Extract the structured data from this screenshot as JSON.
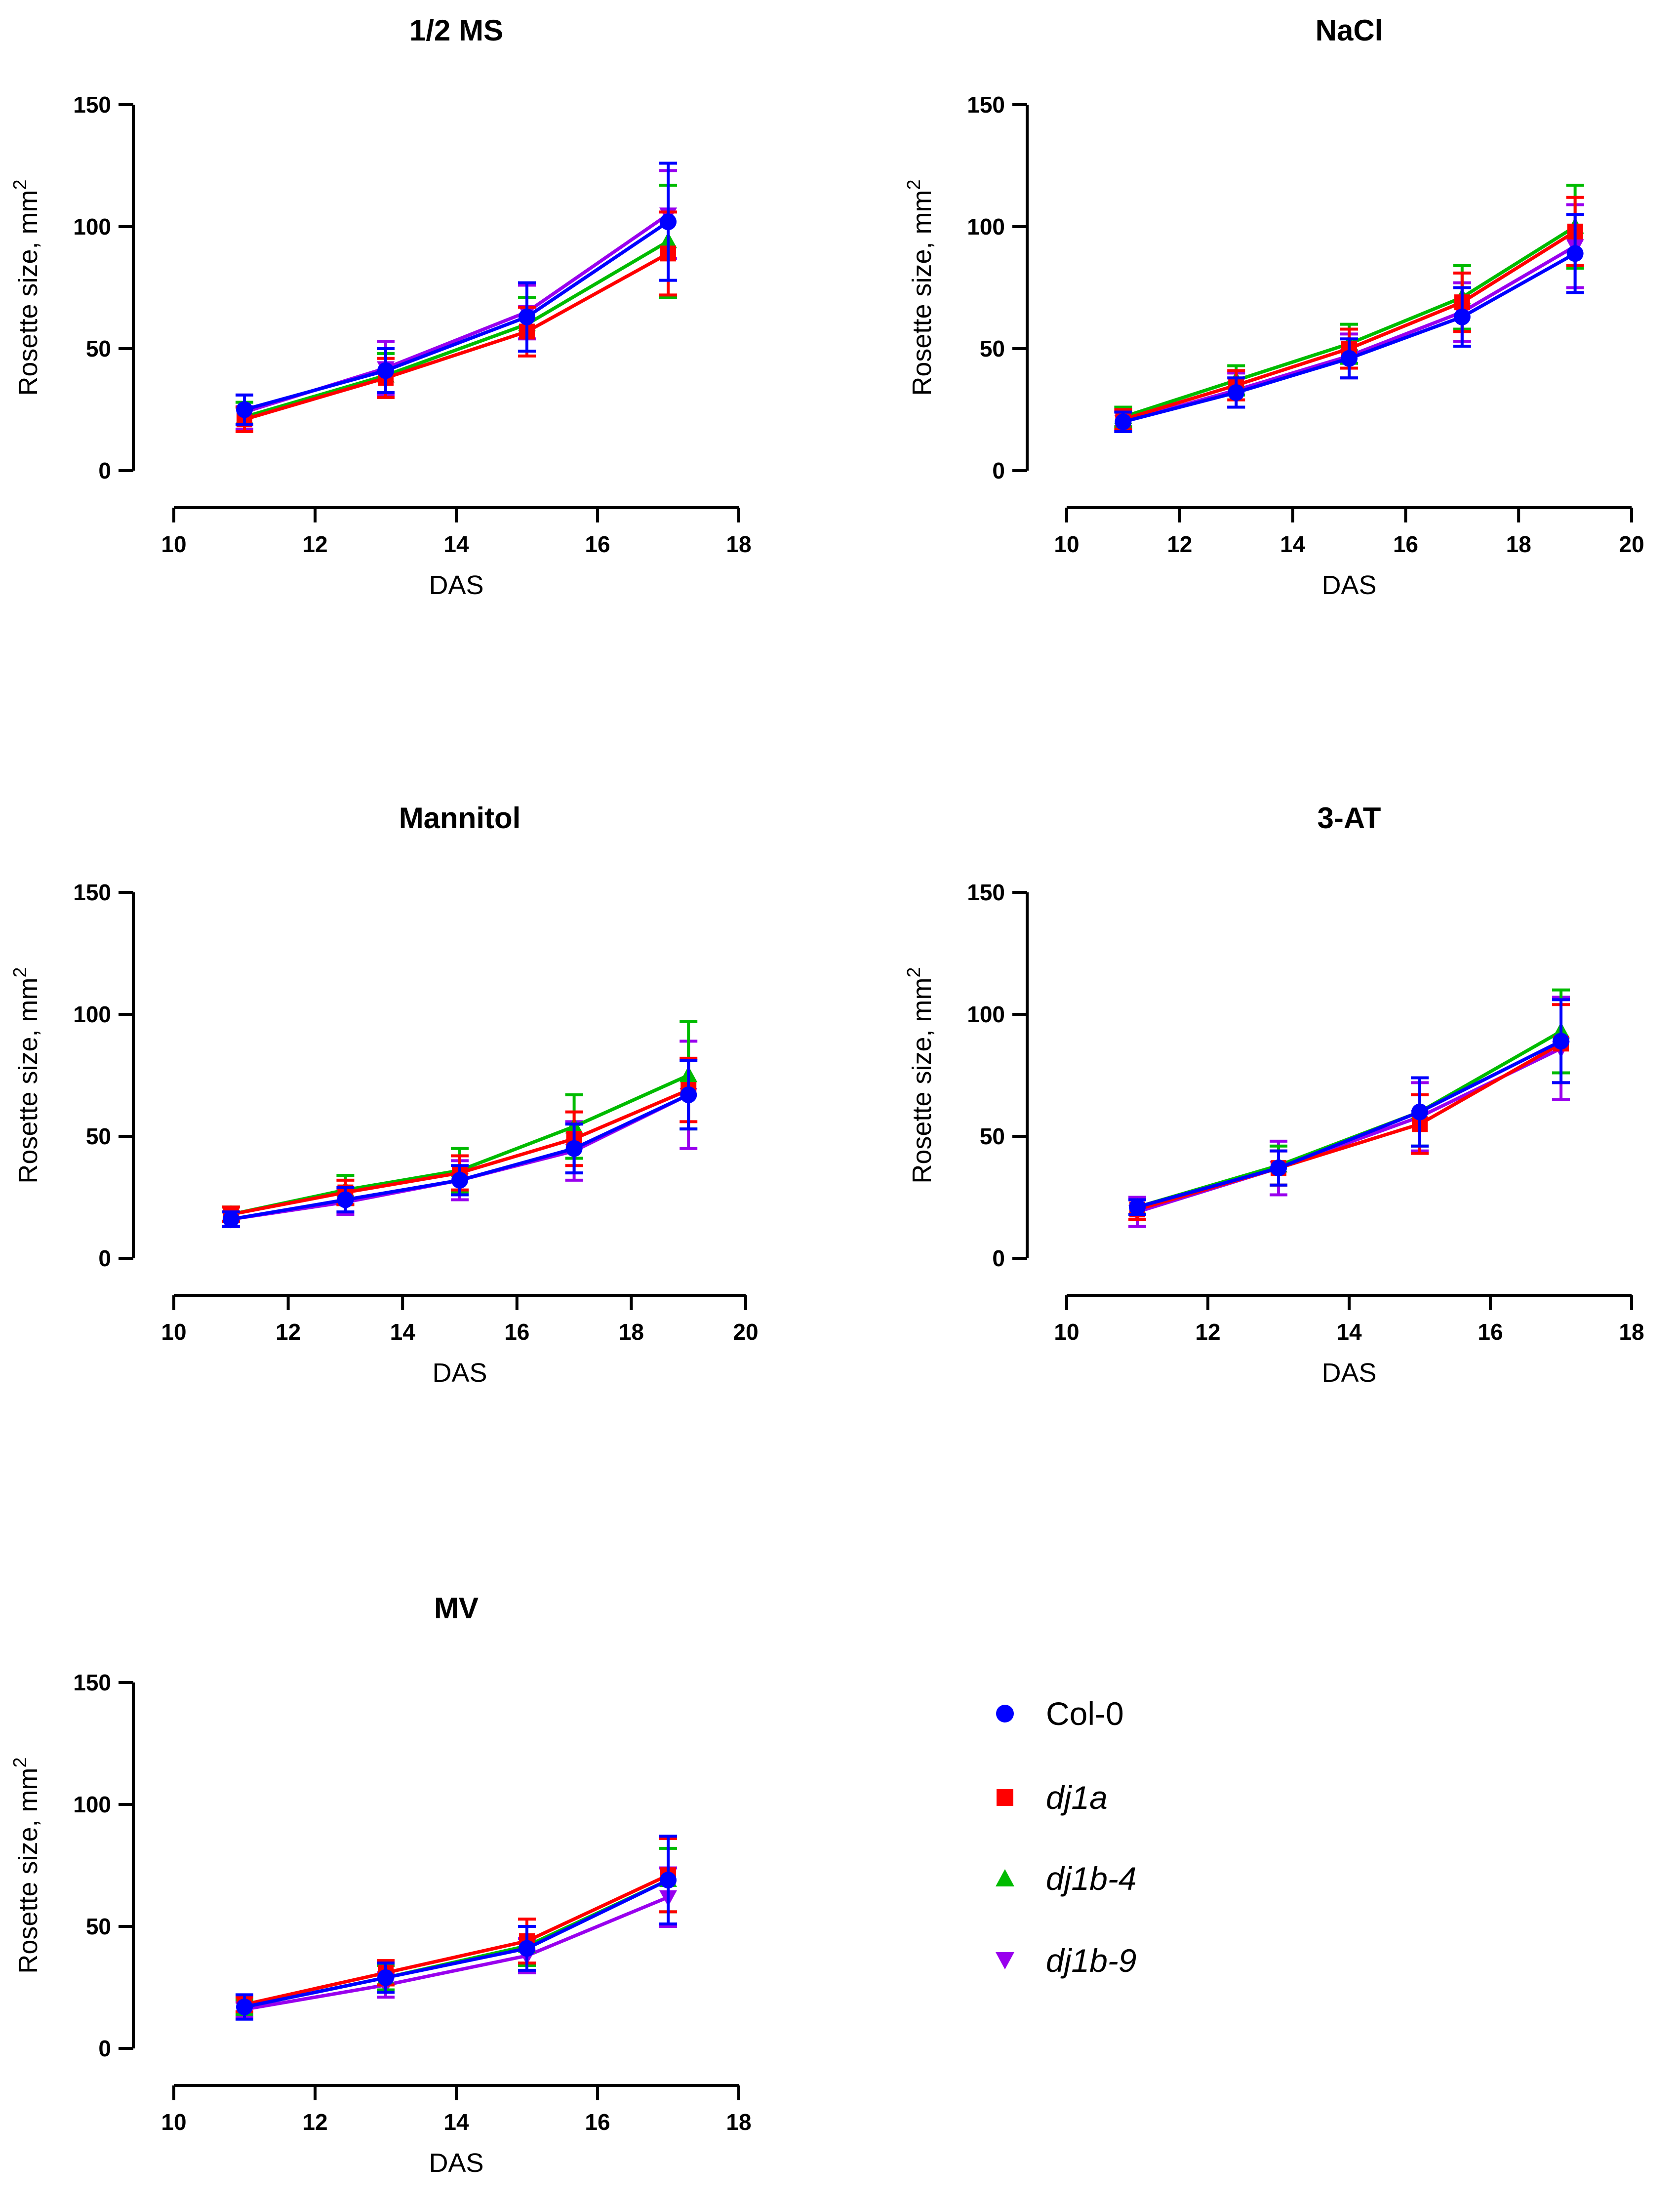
{
  "legend": [
    {
      "name": "Col-0",
      "italic": false,
      "color": "#0000FF",
      "marker": "circle"
    },
    {
      "name": "dj1a",
      "italic": true,
      "color": "#FF0000",
      "marker": "square"
    },
    {
      "name": "dj1b-4",
      "italic": true,
      "color": "#00BB00",
      "marker": "triangle-up"
    },
    {
      "name": "dj1b-9",
      "italic": true,
      "color": "#9900EE",
      "marker": "triangle-down"
    }
  ],
  "chart_data": [
    {
      "type": "line",
      "title": "1/2 MS",
      "xlabel": "DAS",
      "ylabel": "Rosette size, mm",
      "ylabel_sup": "2",
      "xlim": [
        10,
        18
      ],
      "ylim": [
        0,
        150
      ],
      "xticks": [
        "10",
        "12",
        "14",
        "16",
        "18"
      ],
      "yticks": [
        "0",
        "50",
        "100",
        "150"
      ],
      "x": [
        11,
        13,
        15,
        17
      ],
      "series": [
        {
          "name": "dj1b-9",
          "values": [
            24,
            42,
            65,
            105
          ],
          "errors": [
            7,
            11,
            11,
            18
          ]
        },
        {
          "name": "dj1b-4",
          "values": [
            22,
            39,
            60,
            94
          ],
          "errors": [
            6,
            9,
            11,
            23
          ]
        },
        {
          "name": "dj1a",
          "values": [
            21,
            38,
            57,
            89
          ],
          "errors": [
            5,
            8,
            10,
            17
          ]
        },
        {
          "name": "Col-0",
          "values": [
            25,
            41,
            63,
            102
          ],
          "errors": [
            6,
            9,
            14,
            24
          ]
        }
      ]
    },
    {
      "type": "line",
      "title": "NaCl",
      "xlabel": "DAS",
      "ylabel": "Rosette size, mm",
      "ylabel_sup": "2",
      "xlim": [
        10,
        20
      ],
      "ylim": [
        0,
        150
      ],
      "xticks": [
        "10",
        "12",
        "14",
        "16",
        "18",
        "20"
      ],
      "yticks": [
        "0",
        "50",
        "100",
        "150"
      ],
      "x": [
        11,
        13,
        15,
        17,
        19
      ],
      "series": [
        {
          "name": "dj1b-9",
          "values": [
            20,
            33,
            47,
            65,
            92
          ],
          "errors": [
            4,
            7,
            9,
            12,
            17
          ]
        },
        {
          "name": "dj1b-4",
          "values": [
            22,
            37,
            52,
            71,
            100
          ],
          "errors": [
            4,
            6,
            8,
            13,
            17
          ]
        },
        {
          "name": "dj1a",
          "values": [
            21,
            35,
            50,
            69,
            98
          ],
          "errors": [
            4,
            6,
            8,
            12,
            14
          ]
        },
        {
          "name": "Col-0",
          "values": [
            20,
            32,
            46,
            63,
            89
          ],
          "errors": [
            4,
            6,
            8,
            12,
            16
          ]
        }
      ]
    },
    {
      "type": "line",
      "title": "Mannitol",
      "xlabel": "DAS",
      "ylabel": "Rosette size, mm",
      "ylabel_sup": "2",
      "xlim": [
        10,
        20
      ],
      "ylim": [
        0,
        150
      ],
      "xticks": [
        "10",
        "12",
        "14",
        "16",
        "18",
        "20"
      ],
      "yticks": [
        "0",
        "50",
        "100",
        "150"
      ],
      "x": [
        11,
        13,
        15,
        17,
        19
      ],
      "series": [
        {
          "name": "dj1b-9",
          "values": [
            16,
            23,
            32,
            44,
            67
          ],
          "errors": [
            3,
            5,
            8,
            12,
            22
          ]
        },
        {
          "name": "dj1b-4",
          "values": [
            18,
            28,
            36,
            54,
            75
          ],
          "errors": [
            3,
            6,
            9,
            13,
            22
          ]
        },
        {
          "name": "dj1a",
          "values": [
            18,
            27,
            35,
            49,
            69
          ],
          "errors": [
            3,
            5,
            7,
            11,
            13
          ]
        },
        {
          "name": "Col-0",
          "values": [
            16,
            24,
            32,
            45,
            67
          ],
          "errors": [
            3,
            5,
            6,
            10,
            14
          ]
        }
      ]
    },
    {
      "type": "line",
      "title": "3-AT",
      "xlabel": "DAS",
      "ylabel": "Rosette size, mm",
      "ylabel_sup": "2",
      "xlim": [
        10,
        18
      ],
      "ylim": [
        0,
        150
      ],
      "xticks": [
        "10",
        "12",
        "14",
        "16",
        "18"
      ],
      "yticks": [
        "0",
        "50",
        "100",
        "150"
      ],
      "x": [
        11,
        13,
        15,
        17
      ],
      "series": [
        {
          "name": "dj1b-9",
          "values": [
            19,
            37,
            58,
            86
          ],
          "errors": [
            6,
            11,
            14,
            21
          ]
        },
        {
          "name": "dj1b-4",
          "values": [
            21,
            38,
            60,
            93
          ],
          "errors": [
            3,
            8,
            14,
            17
          ]
        },
        {
          "name": "dj1a",
          "values": [
            20,
            37,
            55,
            88
          ],
          "errors": [
            4,
            7,
            12,
            16
          ]
        },
        {
          "name": "Col-0",
          "values": [
            21,
            37,
            60,
            89
          ],
          "errors": [
            3,
            7,
            14,
            17
          ]
        }
      ]
    },
    {
      "type": "line",
      "title": "MV",
      "xlabel": "DAS",
      "ylabel": "Rosette size, mm",
      "ylabel_sup": "2",
      "xlim": [
        10,
        18
      ],
      "ylim": [
        0,
        150
      ],
      "xticks": [
        "10",
        "12",
        "14",
        "16",
        "18"
      ],
      "yticks": [
        "0",
        "50",
        "100",
        "150"
      ],
      "x": [
        11,
        13,
        15,
        17
      ],
      "series": [
        {
          "name": "dj1b-9",
          "values": [
            16,
            26,
            38,
            62
          ],
          "errors": [
            3,
            5,
            7,
            12
          ]
        },
        {
          "name": "dj1b-4",
          "values": [
            17,
            29,
            42,
            69
          ],
          "errors": [
            3,
            5,
            8,
            13
          ]
        },
        {
          "name": "dj1a",
          "values": [
            18,
            31,
            44,
            71
          ],
          "errors": [
            3,
            5,
            9,
            15
          ]
        },
        {
          "name": "Col-0",
          "values": [
            17,
            29,
            41,
            69
          ],
          "errors": [
            5,
            6,
            9,
            18
          ]
        }
      ]
    }
  ]
}
